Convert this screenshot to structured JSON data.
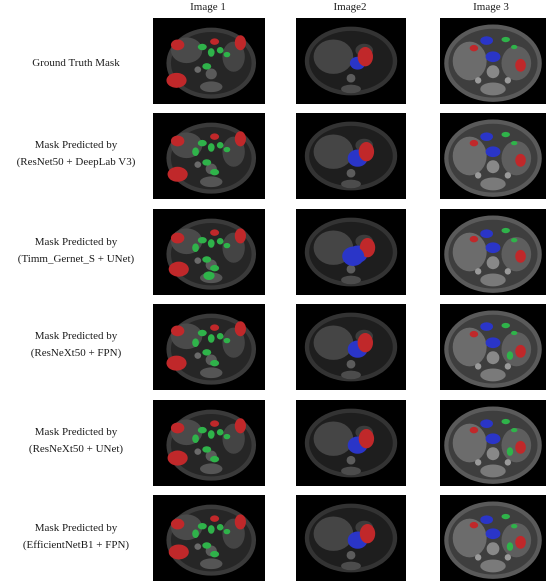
{
  "columns": [
    "Image 1",
    "Image2",
    "Image 3"
  ],
  "rows": [
    {
      "label_lines": [
        "Ground Truth Mask"
      ]
    },
    {
      "label_lines": [
        "Mask Predicted by",
        "(ResNet50 + DeepLab V3)"
      ]
    },
    {
      "label_lines": [
        "Mask Predicted by",
        "(Timm_Gernet_S + UNet)"
      ]
    },
    {
      "label_lines": [
        "Mask Predicted by",
        "(ResNeXt50 + FPN)"
      ]
    },
    {
      "label_lines": [
        "Mask Predicted by",
        "(ResNeXt50 + UNet)"
      ]
    },
    {
      "label_lines": [
        "Mask Predicted by",
        "(EfficientNetB1 + FPN)"
      ]
    }
  ],
  "mask_colors": {
    "red": "#c0282a",
    "green": "#2fb34a",
    "blue": "#2a35c8"
  }
}
